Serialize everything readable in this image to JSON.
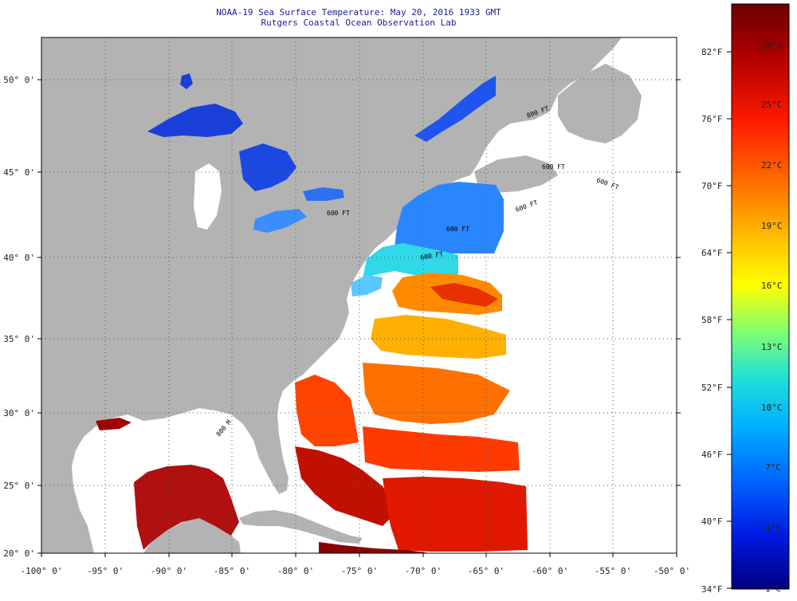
{
  "title_line1": "NOAA-19 Sea Surface Temperature:  May 20, 2016 1933 GMT",
  "title_line2": "Rutgers Coastal Ocean Observation Lab",
  "map": {
    "lon_range": [
      -100,
      -50
    ],
    "lat_range": [
      20,
      52.5
    ],
    "lon_labels": [
      "-100° 0'",
      "-95° 0'",
      "-90° 0'",
      "-85° 0'",
      "-80° 0'",
      "-75° 0'",
      "-70° 0'",
      "-65° 0'",
      "-60° 0'",
      "-55° 0'",
      "-50° 0'"
    ],
    "lat_labels": [
      "20° 0'",
      "25° 0'",
      "30° 0'",
      "35° 0'",
      "40° 0'",
      "45° 0'",
      "50° 0'"
    ],
    "isobath_labels": [
      "800 M",
      "800 FT",
      "600 FT",
      "600 FT",
      "600 FT",
      "600 FT",
      "600 FT",
      "600 FT"
    ],
    "land_color": "#b3b3b3",
    "no_data_color": "#ffffff"
  },
  "colorbar": {
    "fahrenheit_labels": [
      "82°F",
      "76°F",
      "70°F",
      "64°F",
      "58°F",
      "52°F",
      "46°F",
      "40°F",
      "34°F"
    ],
    "celsius_labels": [
      "28°C",
      "25°C",
      "22°C",
      "19°C",
      "16°C",
      "13°C",
      "10°C",
      "7°C",
      "4°C",
      "1°C"
    ],
    "colors": [
      "#7a0000",
      "#c00000",
      "#ff2000",
      "#ff7000",
      "#ffb000",
      "#ffff00",
      "#90ff60",
      "#20e0e0",
      "#00a0ff",
      "#0050ff",
      "#0010e0",
      "#000090"
    ]
  }
}
